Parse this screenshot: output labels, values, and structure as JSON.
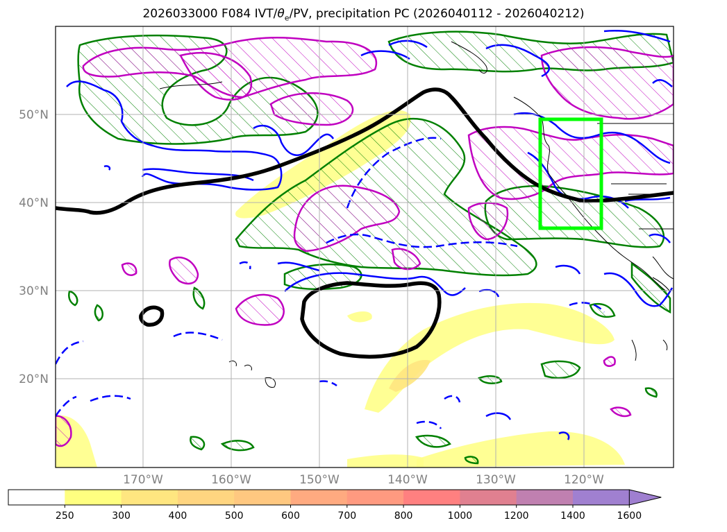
{
  "title": {
    "prefix": "2026033000 F084 IVT/",
    "theta": "θ",
    "theta_sub": "e",
    "suffix": "/PV, precipitation PC (2026040112 - 2026040212)"
  },
  "map": {
    "lon_labels": [
      "170°W",
      "160°W",
      "150°W",
      "140°W",
      "130°W",
      "120°W"
    ],
    "lat_labels": [
      "50°N",
      "40°N",
      "30°N",
      "20°N"
    ],
    "highlight_box_color": "#00ff00",
    "contour_colors": {
      "theta_e": "#0000ff",
      "pv": "#008000",
      "ivt": "#c000c0",
      "jet": "#000000"
    }
  },
  "colorbar": {
    "levels": [
      "250",
      "300",
      "400",
      "500",
      "600",
      "700",
      "800",
      "1000",
      "1200",
      "1400",
      "1600"
    ],
    "colors": [
      "#ffffff",
      "#ffff80",
      "#ffe680",
      "#ffd580",
      "#ffc880",
      "#ffaa80",
      "#ff9a80",
      "#ff8080",
      "#e08090",
      "#c080b0",
      "#a080d0"
    ]
  }
}
